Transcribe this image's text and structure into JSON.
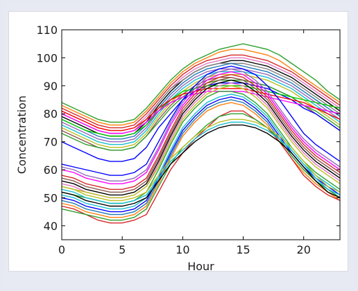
{
  "chart_data": {
    "type": "line",
    "xlabel": "Hour",
    "ylabel": "Concentration",
    "xlim": [
      0,
      23
    ],
    "ylim": [
      35,
      110
    ],
    "x_ticks": [
      0,
      5,
      10,
      15,
      20
    ],
    "y_ticks": [
      40,
      50,
      60,
      70,
      80,
      90,
      100,
      110
    ],
    "grid": false,
    "x": [
      0,
      1,
      2,
      3,
      4,
      5,
      6,
      7,
      8,
      9,
      10,
      11,
      12,
      13,
      14,
      15,
      16,
      17,
      18,
      19,
      20,
      21,
      22,
      23
    ],
    "series": [
      {
        "color": "#2ca02c",
        "values": [
          84,
          82,
          80,
          78,
          77,
          77,
          78,
          82,
          87,
          92,
          96,
          99,
          101,
          103,
          104,
          105,
          104,
          103,
          101,
          98,
          95,
          92,
          88,
          85
        ]
      },
      {
        "color": "#ff7f0e",
        "values": [
          83,
          81,
          79,
          77,
          76,
          76,
          77,
          81,
          86,
          91,
          95,
          98,
          100,
          102,
          103,
          103,
          102,
          101,
          99,
          96,
          93,
          90,
          87,
          84
        ]
      },
      {
        "color": "#d62728",
        "values": [
          82,
          80,
          78,
          76,
          75,
          75,
          76,
          80,
          85,
          90,
          94,
          97,
          99,
          100,
          101,
          101,
          100,
          99,
          97,
          95,
          92,
          89,
          86,
          83
        ]
      },
      {
        "color": "#e377c2",
        "values": [
          81,
          79,
          77,
          75,
          74,
          74,
          75,
          79,
          84,
          89,
          93,
          96,
          98,
          99,
          100,
          100,
          99,
          98,
          96,
          94,
          91,
          88,
          85,
          82
        ]
      },
      {
        "color": "#000000",
        "values": [
          79,
          77,
          75,
          73,
          72,
          72,
          73,
          77,
          83,
          88,
          92,
          95,
          97,
          98,
          99,
          99,
          98,
          97,
          95,
          93,
          90,
          87,
          84,
          81
        ]
      },
      {
        "color": "#7f7f7f",
        "values": [
          80,
          78,
          76,
          74,
          73,
          73,
          74,
          78,
          84,
          89,
          92,
          95,
          97,
          98,
          98,
          98,
          97,
          96,
          94,
          92,
          89,
          86,
          83,
          80
        ]
      },
      {
        "color": "#1f77b4",
        "values": [
          78,
          76,
          74,
          72,
          71,
          71,
          72,
          76,
          82,
          87,
          91,
          94,
          96,
          97,
          98,
          97,
          96,
          95,
          93,
          91,
          88,
          85,
          82,
          79
        ]
      },
      {
        "color": "#9467bd",
        "values": [
          77,
          75,
          73,
          71,
          70,
          70,
          71,
          75,
          81,
          86,
          90,
          93,
          95,
          96,
          96,
          96,
          95,
          94,
          92,
          90,
          87,
          84,
          81,
          78
        ]
      },
      {
        "color": "#17becf",
        "values": [
          76,
          74,
          72,
          70,
          69,
          69,
          70,
          74,
          80,
          85,
          89,
          92,
          94,
          95,
          95,
          95,
          94,
          93,
          91,
          89,
          86,
          83,
          80,
          77
        ]
      },
      {
        "color": "#bcbd22",
        "values": [
          75,
          73,
          71,
          69,
          68,
          68,
          69,
          73,
          79,
          84,
          88,
          91,
          93,
          94,
          94,
          94,
          93,
          92,
          90,
          88,
          85,
          82,
          79,
          76
        ]
      },
      {
        "color": "#8c564b",
        "values": [
          74,
          72,
          70,
          68,
          67,
          67,
          68,
          72,
          78,
          83,
          87,
          90,
          92,
          93,
          93,
          92,
          91,
          90,
          88,
          86,
          83,
          80,
          77,
          74
        ]
      },
      {
        "color": "#2ca02c",
        "values": [
          73,
          71,
          69,
          68,
          67,
          67,
          68,
          72,
          77,
          82,
          86,
          89,
          91,
          92,
          92,
          92,
          91,
          90,
          88,
          86,
          83,
          81,
          78,
          75
        ]
      },
      {
        "color": "#0000ff",
        "values": [
          70,
          68,
          66,
          64,
          63,
          63,
          64,
          68,
          75,
          80,
          85,
          88,
          90,
          91,
          91,
          91,
          90,
          89,
          87,
          85,
          82,
          80,
          77,
          74
        ]
      },
      {
        "color": "#00cc00",
        "values": [
          78,
          76,
          74,
          73,
          72,
          72,
          73,
          76,
          81,
          85,
          88,
          89,
          90,
          90,
          90,
          90,
          89,
          88,
          87,
          86,
          85,
          84,
          83,
          82
        ]
      },
      {
        "color": "#ff00ff",
        "values": [
          80,
          78,
          76,
          74,
          73,
          73,
          74,
          77,
          81,
          84,
          86,
          87,
          88,
          88,
          88,
          88,
          87,
          86,
          85,
          84,
          83,
          82,
          81,
          80
        ]
      },
      {
        "color": "#ff0000",
        "values": [
          81,
          79,
          77,
          75,
          74,
          74,
          75,
          78,
          82,
          85,
          87,
          88,
          89,
          89,
          89,
          89,
          88,
          87,
          86,
          85,
          84,
          82,
          80,
          78
        ]
      },
      {
        "color": "#0000ff",
        "values": [
          62,
          61,
          60,
          59,
          58,
          58,
          59,
          62,
          70,
          78,
          85,
          90,
          94,
          96,
          97,
          96,
          94,
          90,
          85,
          79,
          73,
          69,
          66,
          63
        ]
      },
      {
        "color": "#9467bd",
        "values": [
          61,
          60,
          58,
          57,
          56,
          56,
          57,
          60,
          68,
          77,
          84,
          89,
          93,
          95,
          96,
          95,
          92,
          88,
          82,
          76,
          71,
          67,
          64,
          61
        ]
      },
      {
        "color": "#ff00ff",
        "values": [
          60,
          59,
          57,
          56,
          55,
          55,
          56,
          59,
          67,
          76,
          83,
          88,
          92,
          94,
          95,
          94,
          91,
          87,
          81,
          75,
          70,
          66,
          63,
          60
        ]
      },
      {
        "color": "#d62728",
        "values": [
          58,
          57,
          55,
          54,
          53,
          53,
          54,
          57,
          65,
          74,
          82,
          87,
          91,
          93,
          94,
          93,
          90,
          86,
          80,
          74,
          69,
          65,
          62,
          59
        ]
      },
      {
        "color": "#8c564b",
        "values": [
          57,
          56,
          54,
          53,
          52,
          52,
          53,
          56,
          64,
          73,
          81,
          86,
          90,
          92,
          93,
          92,
          89,
          85,
          79,
          73,
          68,
          64,
          61,
          58
        ]
      },
      {
        "color": "#000000",
        "values": [
          56,
          55,
          53,
          52,
          51,
          51,
          52,
          55,
          63,
          72,
          80,
          85,
          89,
          91,
          92,
          91,
          88,
          84,
          78,
          72,
          67,
          63,
          60,
          57
        ]
      },
      {
        "color": "#e377c2",
        "values": [
          55,
          54,
          52,
          51,
          50,
          50,
          51,
          54,
          62,
          71,
          79,
          84,
          88,
          90,
          91,
          90,
          87,
          83,
          77,
          71,
          66,
          62,
          59,
          56
        ]
      },
      {
        "color": "#bcbd22",
        "values": [
          54,
          53,
          52,
          51,
          50,
          50,
          51,
          54,
          61,
          70,
          78,
          83,
          87,
          89,
          90,
          89,
          86,
          82,
          76,
          70,
          65,
          61,
          58,
          55
        ]
      },
      {
        "color": "#2ca02c",
        "values": [
          52,
          51,
          50,
          49,
          48,
          48,
          49,
          52,
          60,
          69,
          77,
          82,
          86,
          88,
          88,
          87,
          84,
          80,
          74,
          68,
          63,
          59,
          56,
          53
        ]
      },
      {
        "color": "#17becf",
        "values": [
          51,
          50,
          48,
          47,
          46,
          46,
          47,
          50,
          58,
          67,
          75,
          80,
          84,
          86,
          87,
          86,
          83,
          79,
          73,
          67,
          62,
          58,
          55,
          52
        ]
      },
      {
        "color": "#0000ff",
        "values": [
          50,
          49,
          47,
          46,
          45,
          45,
          46,
          49,
          57,
          66,
          74,
          79,
          83,
          85,
          86,
          85,
          82,
          78,
          72,
          66,
          61,
          57,
          54,
          51
        ]
      },
      {
        "color": "#1f77b4",
        "values": [
          49,
          48,
          46,
          45,
          44,
          44,
          45,
          48,
          56,
          65,
          73,
          78,
          82,
          84,
          85,
          84,
          81,
          77,
          71,
          65,
          60,
          56,
          53,
          50
        ]
      },
      {
        "color": "#ff7f0e",
        "values": [
          48,
          47,
          45,
          44,
          43,
          43,
          44,
          47,
          55,
          64,
          72,
          77,
          81,
          83,
          84,
          83,
          80,
          76,
          70,
          64,
          59,
          55,
          52,
          49
        ]
      },
      {
        "color": "#d62728",
        "values": [
          47,
          46,
          44,
          42,
          41,
          41,
          42,
          44,
          52,
          60,
          66,
          71,
          75,
          79,
          81,
          81,
          78,
          75,
          70,
          64,
          58,
          54,
          51,
          49
        ]
      },
      {
        "color": "#2ca02c",
        "values": [
          46,
          45,
          44,
          43,
          42,
          42,
          43,
          46,
          54,
          62,
          68,
          72,
          76,
          79,
          80,
          80,
          78,
          75,
          71,
          65,
          60,
          56,
          53,
          50
        ]
      },
      {
        "color": "#000000",
        "values": [
          52,
          51,
          49,
          48,
          47,
          47,
          48,
          50,
          56,
          62,
          66,
          70,
          73,
          75,
          76,
          76,
          75,
          73,
          70,
          66,
          61,
          56,
          52,
          50
        ]
      },
      {
        "color": "#17becf",
        "values": [
          53,
          52,
          50,
          49,
          48,
          48,
          49,
          51,
          57,
          63,
          67,
          71,
          74,
          76,
          77,
          77,
          76,
          74,
          71,
          67,
          62,
          57,
          53,
          51
        ]
      },
      {
        "color": "#bcbd22",
        "values": [
          54,
          53,
          51,
          50,
          49,
          49,
          50,
          52,
          58,
          64,
          68,
          72,
          75,
          77,
          78,
          78,
          77,
          75,
          72,
          68,
          63,
          58,
          54,
          52
        ]
      }
    ]
  }
}
